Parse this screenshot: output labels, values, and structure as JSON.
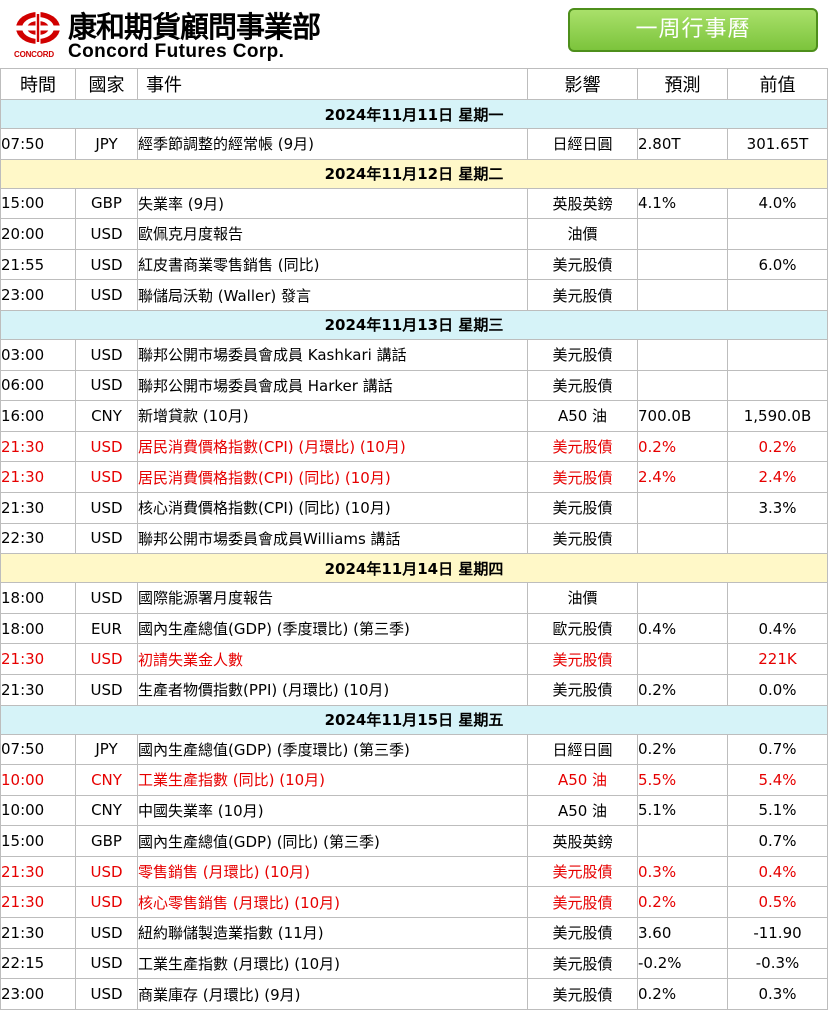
{
  "header": {
    "logo_cn": "康和期貨顧問事業部",
    "logo_en": "Concord Futures Corp.",
    "logo_small": "CONCORD",
    "week_button": "一周行事曆"
  },
  "table": {
    "headers": {
      "time": "時間",
      "country": "國家",
      "event": "事件",
      "impact": "影響",
      "forecast": "預測",
      "previous": "前值"
    },
    "rows": [
      {
        "kind": "day",
        "date": "2024年11月11日  星期一",
        "shade": "blue"
      },
      {
        "kind": "event",
        "time": "07:50",
        "country": "JPY",
        "event": "經季節調整的經常帳 (9月)",
        "impact": "日經日圓",
        "forecast": "2.80T",
        "previous": "301.65T",
        "red": false
      },
      {
        "kind": "day",
        "date": "2024年11月12日  星期二",
        "shade": "yellow"
      },
      {
        "kind": "event",
        "time": "15:00",
        "country": "GBP",
        "event": "失業率 (9月)",
        "impact": "英股英鎊",
        "forecast": "4.1%",
        "previous": "4.0%",
        "red": false
      },
      {
        "kind": "event",
        "time": "20:00",
        "country": "USD",
        "event": "歐佩克月度報告",
        "impact": "油價",
        "forecast": "",
        "previous": "",
        "red": false
      },
      {
        "kind": "event",
        "time": "21:55",
        "country": "USD",
        "event": "紅皮書商業零售銷售 (同比)",
        "impact": "美元股債",
        "forecast": "",
        "previous": "6.0%",
        "red": false
      },
      {
        "kind": "event",
        "time": "23:00",
        "country": "USD",
        "event": "聯儲局沃勒 (Waller) 發言",
        "impact": "美元股債",
        "forecast": "",
        "previous": "",
        "red": false
      },
      {
        "kind": "day",
        "date": "2024年11月13日  星期三",
        "shade": "blue"
      },
      {
        "kind": "event",
        "time": "03:00",
        "country": "USD",
        "event": "聯邦公開市場委員會成員 Kashkari 講話",
        "impact": "美元股債",
        "forecast": "",
        "previous": "",
        "red": false
      },
      {
        "kind": "event",
        "time": "06:00",
        "country": "USD",
        "event": "聯邦公開市場委員會成員 Harker 講話",
        "impact": "美元股債",
        "forecast": "",
        "previous": "",
        "red": false
      },
      {
        "kind": "event",
        "time": "16:00",
        "country": "CNY",
        "event": "新增貸款 (10月)",
        "impact": "A50 油",
        "forecast": "700.0B",
        "previous": "1,590.0B",
        "red": false
      },
      {
        "kind": "event",
        "time": "21:30",
        "country": "USD",
        "event": "居民消費價格指數(CPI) (月環比) (10月)",
        "impact": "美元股債",
        "forecast": "0.2%",
        "previous": "0.2%",
        "red": true
      },
      {
        "kind": "event",
        "time": "21:30",
        "country": "USD",
        "event": "居民消費價格指數(CPI) (同比) (10月)",
        "impact": "美元股債",
        "forecast": "2.4%",
        "previous": "2.4%",
        "red": true
      },
      {
        "kind": "event",
        "time": "21:30",
        "country": "USD",
        "event": "核心消費價格指數(CPI) (同比) (10月)",
        "impact": "美元股債",
        "forecast": "",
        "previous": "3.3%",
        "red": false
      },
      {
        "kind": "event",
        "time": "22:30",
        "country": "USD",
        "event": "聯邦公開市場委員會成員Williams 講話",
        "impact": "美元股債",
        "forecast": "",
        "previous": "",
        "red": false
      },
      {
        "kind": "day",
        "date": "2024年11月14日  星期四",
        "shade": "yellow"
      },
      {
        "kind": "event",
        "time": "18:00",
        "country": "USD",
        "event": "國際能源署月度報告",
        "impact": "油價",
        "forecast": "",
        "previous": "",
        "red": false
      },
      {
        "kind": "event",
        "time": "18:00",
        "country": "EUR",
        "event": "國內生產總值(GDP) (季度環比) (第三季)",
        "impact": "歐元股債",
        "forecast": "0.4%",
        "previous": "0.4%",
        "red": false
      },
      {
        "kind": "event",
        "time": "21:30",
        "country": "USD",
        "event": "初請失業金人數",
        "impact": "美元股債",
        "forecast": "",
        "previous": "221K",
        "red": true
      },
      {
        "kind": "event",
        "time": "21:30",
        "country": "USD",
        "event": "生產者物價指數(PPI) (月環比) (10月)",
        "impact": "美元股債",
        "forecast": "0.2%",
        "previous": "0.0%",
        "red": false
      },
      {
        "kind": "day",
        "date": "2024年11月15日  星期五",
        "shade": "blue"
      },
      {
        "kind": "event",
        "time": "07:50",
        "country": "JPY",
        "event": "國內生產總值(GDP) (季度環比) (第三季)",
        "impact": "日經日圓",
        "forecast": "0.2%",
        "previous": "0.7%",
        "red": false
      },
      {
        "kind": "event",
        "time": "10:00",
        "country": "CNY",
        "event": "工業生產指數 (同比) (10月)",
        "impact": "A50 油",
        "forecast": "5.5%",
        "previous": "5.4%",
        "red": true
      },
      {
        "kind": "event",
        "time": "10:00",
        "country": "CNY",
        "event": "中國失業率 (10月)",
        "impact": "A50 油",
        "forecast": "5.1%",
        "previous": "5.1%",
        "red": false
      },
      {
        "kind": "event",
        "time": "15:00",
        "country": "GBP",
        "event": "國內生產總值(GDP) (同比) (第三季)",
        "impact": "英股英鎊",
        "forecast": "",
        "previous": "0.7%",
        "red": false
      },
      {
        "kind": "event",
        "time": "21:30",
        "country": "USD",
        "event": "零售銷售 (月環比) (10月)",
        "impact": "美元股債",
        "forecast": "0.3%",
        "previous": "0.4%",
        "red": true
      },
      {
        "kind": "event",
        "time": "21:30",
        "country": "USD",
        "event": "核心零售銷售 (月環比) (10月)",
        "impact": "美元股債",
        "forecast": "0.2%",
        "previous": "0.5%",
        "red": true
      },
      {
        "kind": "event",
        "time": "21:30",
        "country": "USD",
        "event": "紐約聯儲製造業指數 (11月)",
        "impact": "美元股債",
        "forecast": "3.60",
        "previous": "-11.90",
        "red": false
      },
      {
        "kind": "event",
        "time": "22:15",
        "country": "USD",
        "event": "工業生產指數 (月環比) (10月)",
        "impact": "美元股債",
        "forecast": "-0.2%",
        "previous": "-0.3%",
        "red": false
      },
      {
        "kind": "event",
        "time": "23:00",
        "country": "USD",
        "event": "商業庫存 (月環比) (9月)",
        "impact": "美元股債",
        "forecast": "0.2%",
        "previous": "0.3%",
        "red": false
      }
    ]
  },
  "colors": {
    "highlight_red": "#e60000",
    "day_blue": "#d6f3f8",
    "day_yellow": "#fff8c8",
    "button_green": "#8fd04a"
  }
}
